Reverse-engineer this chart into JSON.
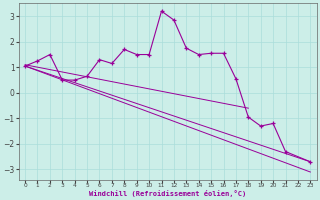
{
  "xlabel": "Windchill (Refroidissement éolien,°C)",
  "bg_color": "#cceee8",
  "line_color": "#990099",
  "xlim": [
    -0.5,
    23.5
  ],
  "ylim": [
    -3.4,
    3.5
  ],
  "yticks": [
    -3,
    -2,
    -1,
    0,
    1,
    2,
    3
  ],
  "xticks": [
    0,
    1,
    2,
    3,
    4,
    5,
    6,
    7,
    8,
    9,
    10,
    11,
    12,
    13,
    14,
    15,
    16,
    17,
    18,
    19,
    20,
    21,
    22,
    23
  ],
  "data_x": [
    0,
    1,
    2,
    3,
    4,
    5,
    6,
    7,
    8,
    9,
    10,
    11,
    12,
    13,
    14,
    15,
    16,
    17,
    18,
    19,
    20,
    21,
    23
  ],
  "data_y": [
    1.05,
    1.25,
    1.5,
    0.5,
    0.5,
    0.65,
    1.3,
    1.15,
    1.7,
    1.5,
    1.5,
    3.2,
    2.85,
    1.75,
    1.5,
    1.55,
    1.55,
    0.55,
    -0.95,
    -1.3,
    -1.2,
    -2.3,
    -2.7
  ],
  "trend1_x": [
    0,
    23
  ],
  "trend1_y": [
    1.05,
    -2.7
  ],
  "trend2_x": [
    0,
    23
  ],
  "trend2_y": [
    1.05,
    -3.1
  ],
  "trend3_x": [
    0,
    18
  ],
  "trend3_y": [
    1.1,
    -0.6
  ],
  "grid_color": "#aaddda"
}
